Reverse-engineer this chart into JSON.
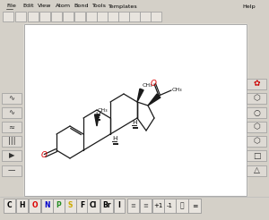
{
  "bg_color": "#d4d0c8",
  "canvas_color": "#ffffff",
  "canvas_border": "#aaaaaa",
  "menu_items": [
    "File",
    "Edit",
    "View",
    "Atom",
    "Bond",
    "Tools",
    "Templates",
    "Help"
  ],
  "menu_x": [
    7,
    25,
    42,
    62,
    82,
    102,
    120,
    270
  ],
  "toolbar_btn_x": [
    3,
    17,
    31,
    44,
    57,
    70,
    83,
    96,
    108,
    120,
    132,
    144,
    156,
    168
  ],
  "left_btn_y": [
    185,
    168,
    152,
    136,
    120,
    104
  ],
  "right_btn_y": [
    185,
    168,
    152,
    136,
    120,
    104,
    88
  ],
  "right_shapes": [
    "△",
    "□",
    "⬡",
    "⬡",
    "○",
    "⬡"
  ],
  "bottom_labels": [
    "C",
    "H",
    "O",
    "N",
    "P",
    "S",
    "F",
    "Cl",
    "Br",
    "I"
  ],
  "bottom_colors": [
    "#000000",
    "#000000",
    "#dd0000",
    "#0000cc",
    "#228b22",
    "#ccaa00",
    "#000000",
    "#000000",
    "#000000",
    "#000000"
  ],
  "bottom_x": [
    4,
    18,
    32,
    46,
    59,
    72,
    85,
    97,
    112,
    127
  ],
  "bottom_w": [
    13,
    13,
    13,
    13,
    13,
    13,
    13,
    14,
    14,
    12
  ],
  "extra_bottom": [
    [
      142,
      13,
      "≡",
      "#555555"
    ],
    [
      156,
      13,
      "≡",
      "#555555"
    ],
    [
      170,
      13,
      "+1",
      "#000000"
    ],
    [
      183,
      13,
      "-1",
      "#000000"
    ]
  ],
  "bond_color": "#1a1a1a",
  "oxygen_color": "#dd0000",
  "wedge_color": "#1a1a1a",
  "label_fs": 4.8,
  "lw": 0.9
}
